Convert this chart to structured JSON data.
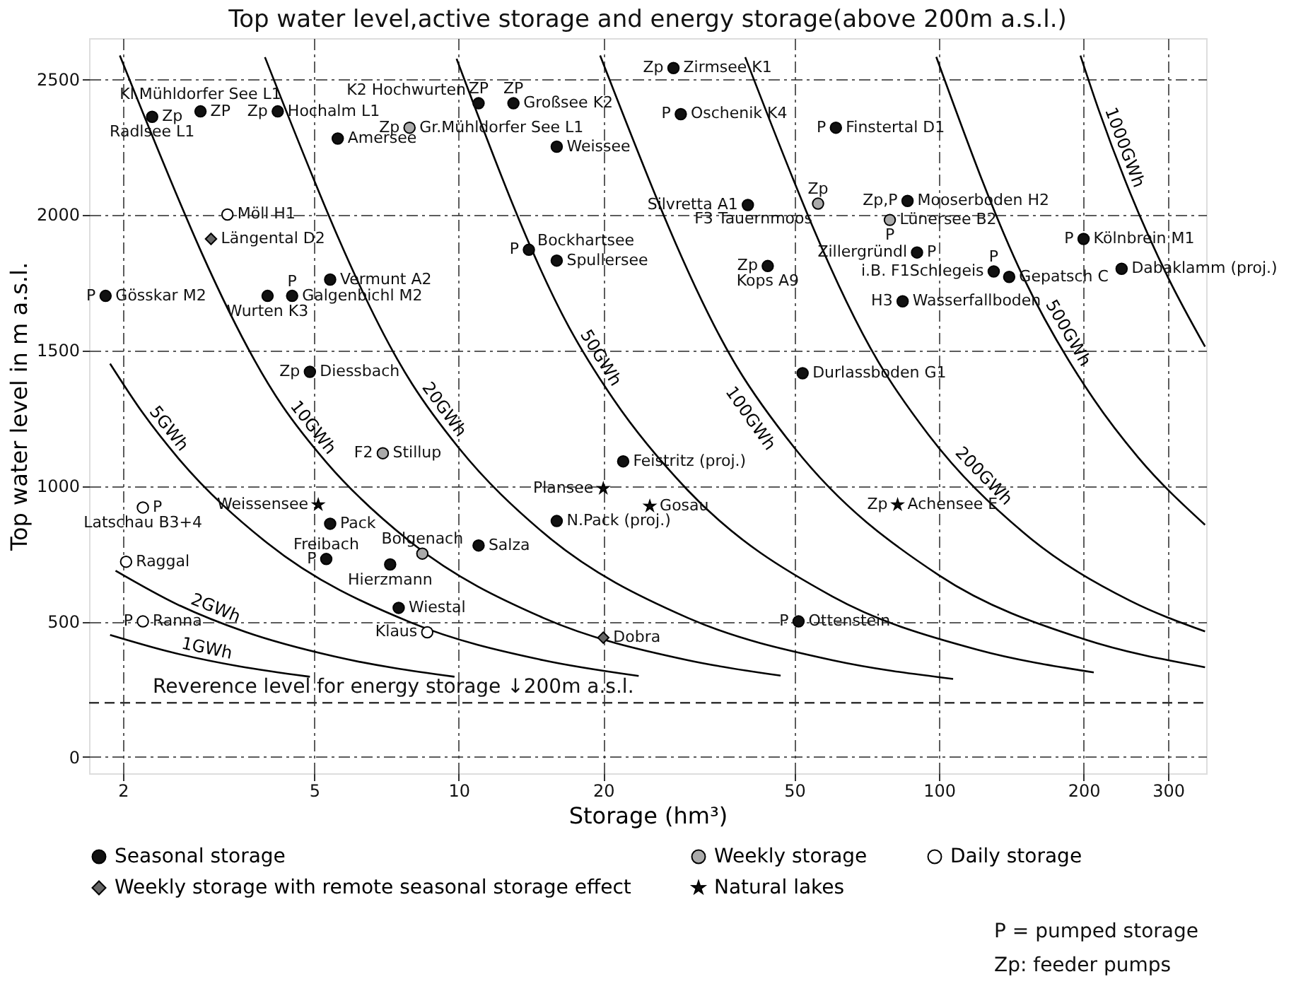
{
  "chart_data": {
    "type": "scatter",
    "title": "Top water level,active storage and energy storage(above 200m a.s.l.)",
    "xlabel": "Storage (hm³)",
    "ylabel": "Top water level in m a.s.l.",
    "log": "x",
    "xlim": [
      1.7,
      360
    ],
    "xticks": [
      2,
      5,
      10,
      20,
      50,
      100,
      200,
      300
    ],
    "ylim": [
      -60,
      2650
    ],
    "yticks": [
      0,
      500,
      1000,
      1500,
      2000,
      2500
    ],
    "grid": true,
    "legend": "bottom",
    "series": [
      {
        "name": "Seasonal storage",
        "marker": "circle",
        "color": "#111111",
        "x": [
          2.3,
          2.9,
          4.2,
          5.6,
          11,
          13,
          16,
          1.84,
          4.0,
          4.5,
          5.4,
          4.9,
          14,
          16,
          28,
          29,
          61,
          40,
          86,
          90,
          44,
          130,
          140,
          84,
          200,
          240,
          52,
          5.4,
          5.3,
          7.2,
          11,
          7.5,
          16,
          22,
          51
        ],
        "values": [
          2360,
          2380,
          2380,
          2280,
          2410,
          2410,
          2250,
          1700,
          1700,
          1700,
          1760,
          1420,
          1870,
          1830,
          2540,
          2370,
          2320,
          2035,
          2050,
          1860,
          1810,
          1790,
          1770,
          1680,
          1910,
          1800,
          1415,
          860,
          730,
          710,
          780,
          550,
          870,
          1090,
          500
        ],
        "value_labels": [
          "Radlsee L1",
          "Kl.Mühldorfer See L1",
          "Hochalm L1",
          "Amersee",
          "K2 Hochwurten",
          "Großsee K2",
          "Weissee",
          "Gösskar M2",
          "Wurten K3",
          "Galgenbichl M2",
          "Vermunt A2",
          "Diessbach",
          "Bockhartsee",
          "Spullersee",
          "Zirmsee K1",
          "Oschenik K4",
          "Finstertal D1",
          "Silvretta A1",
          "Mooserboden H2",
          "Zillergründl",
          "Kops A9",
          "i.B. F1Schlegeis",
          "Gepatsch C",
          "Wasserfallboden",
          "Kölnbrein M1",
          "Dabaklamm (proj.)",
          "Durlassboden G1",
          "Pack",
          "Freibach",
          "Hierzmann",
          "Salza",
          "Wiestal",
          "N.Pack (proj.)",
          "Feistritz (proj.)",
          "Ottenstein"
        ]
      },
      {
        "name": "Weekly storage",
        "marker": "circle",
        "color": "#aaaaaa",
        "x": [
          7.9,
          56,
          79,
          8.4,
          6.95
        ],
        "values": [
          2320,
          2040,
          1980,
          750,
          1120
        ],
        "value_labels": [
          "Gr.Mühldorfer See L1",
          "F3 Tauernmoos",
          "Lünersee B2",
          "Bolgenach",
          "Stillup"
        ]
      },
      {
        "name": "Daily storage",
        "marker": "circle",
        "color": "#ffffff",
        "x": [
          3.3,
          2.2,
          2.03,
          8.6,
          2.2
        ],
        "values": [
          2000,
          920,
          720,
          460,
          500
        ],
        "value_labels": [
          "Möll H1",
          "Latschau B3+4",
          "Raggal",
          "Klaus",
          "Ranna"
        ]
      },
      {
        "name": "Weekly storage with remote seasonal storage effect",
        "marker": "diamond",
        "color": "#666666",
        "x": [
          3.05,
          20
        ],
        "values": [
          1910,
          440
        ],
        "value_labels": [
          "Längental D2",
          "Dobra"
        ]
      },
      {
        "name": "Natural lakes",
        "marker": "star",
        "color": "#111111",
        "x": [
          5.1,
          20,
          25,
          82
        ],
        "values": [
          930,
          990,
          925,
          930
        ],
        "value_labels": [
          "Weissensee",
          "Plansee",
          "Gosau",
          "Achensee E"
        ]
      },
      {
        "name": "1GWh",
        "type": "line",
        "color": "#000000",
        "marker": "none",
        "line_style": "solid",
        "x": [
          1.88,
          2.5,
          3.5,
          4.9
        ],
        "values": [
          450,
          388,
          334,
          296
        ]
      },
      {
        "name": "2GWh",
        "type": "line",
        "color": "#000000",
        "marker": "none",
        "line_style": "solid",
        "x": [
          1.93,
          2.6,
          3.6,
          5.5,
          9.8
        ],
        "values": [
          687,
          562,
          461,
          371,
          296
        ]
      },
      {
        "name": "5GWh",
        "type": "line",
        "color": "#000000",
        "marker": "none",
        "line_style": "solid",
        "x": [
          1.88,
          2.2,
          2.6,
          4,
          8,
          15,
          23.7
        ],
        "values": [
          1450,
          1268,
          1104,
          788,
          494,
          357,
          299
        ]
      },
      {
        "name": "10GWh",
        "type": "line",
        "color": "#000000",
        "marker": "none",
        "line_style": "solid",
        "x": [
          1.97,
          4.3,
          5.3,
          8,
          15,
          30,
          46.8
        ],
        "values": [
          2586,
          1293,
          1087,
          788,
          513,
          357,
          300
        ]
      },
      {
        "name": "20GWh",
        "type": "line",
        "color": "#000000",
        "marker": "none",
        "line_style": "solid",
        "x": [
          3.95,
          8,
          10,
          15,
          30,
          60,
          107
        ],
        "values": [
          2580,
          1375,
          1140,
          827,
          513,
          357,
          288
        ]
      },
      {
        "name": "50GWh",
        "type": "line",
        "color": "#000000",
        "marker": "none",
        "line_style": "solid",
        "x": [
          9.9,
          17,
          21,
          30,
          60,
          120,
          210
        ],
        "values": [
          2574,
          1582,
          1319,
          983,
          592,
          396,
          312
        ]
      },
      {
        "name": "100GWh",
        "type": "line",
        "color": "#000000",
        "marker": "none",
        "line_style": "solid",
        "x": [
          19.7,
          38,
          50,
          100,
          200,
          358
        ],
        "values": [
          2586,
          1437,
          1140,
          670,
          435,
          331
        ]
      },
      {
        "name": "200GWh",
        "type": "line",
        "color": "#000000",
        "marker": "none",
        "line_style": "solid",
        "x": [
          39.5,
          75,
          95,
          150,
          250,
          358
        ],
        "values": [
          2580,
          1453,
          1189,
          827,
          576,
          463
        ]
      },
      {
        "name": "500GWh",
        "type": "line",
        "color": "#000000",
        "marker": "none",
        "line_style": "solid",
        "x": [
          98.7,
          150,
          210,
          260,
          358
        ],
        "values": [
          2581,
          1767,
          1319,
          1104,
          856
        ]
      },
      {
        "name": "1000GWh",
        "type": "line",
        "color": "#000000",
        "marker": "none",
        "line_style": "solid",
        "x": [
          197,
          215,
          250,
          300,
          358
        ],
        "values": [
          2586,
          2386,
          2080,
          1767,
          1513
        ]
      }
    ],
    "ref_lines": [
      {
        "axis": "y",
        "value": 200,
        "label": "Reverence level for energy storage ↓200m a.s.l.",
        "line_style": "dashed"
      }
    ],
    "annotations": [
      {
        "text": "Zp",
        "x": 2.3,
        "y": 2360
      },
      {
        "text": "ZP",
        "x": 2.9,
        "y": 2380
      },
      {
        "text": "Zp",
        "x": 4.2,
        "y": 2380
      },
      {
        "text": "ZP",
        "x": 11,
        "y": 2410
      },
      {
        "text": "ZP",
        "x": 13,
        "y": 2410
      },
      {
        "text": "P",
        "x": 1.84,
        "y": 1700
      },
      {
        "text": "P",
        "x": 4.5,
        "y": 1700
      },
      {
        "text": "Zp",
        "x": 4.9,
        "y": 1420
      },
      {
        "text": "P",
        "x": 14,
        "y": 1870
      },
      {
        "text": "Zp",
        "x": 28,
        "y": 2540
      },
      {
        "text": "P",
        "x": 29,
        "y": 2370
      },
      {
        "text": "P",
        "x": 61,
        "y": 2320
      },
      {
        "text": "Zp,P",
        "x": 86,
        "y": 2050
      },
      {
        "text": "P",
        "x": 90,
        "y": 1860
      },
      {
        "text": "Zp",
        "x": 44,
        "y": 1810
      },
      {
        "text": "P",
        "x": 130,
        "y": 1790
      },
      {
        "text": "H3",
        "x": 84,
        "y": 1680
      },
      {
        "text": "P",
        "x": 200,
        "y": 1910
      },
      {
        "text": "P",
        "x": 5.3,
        "y": 730
      },
      {
        "text": "P",
        "x": 51,
        "y": 500
      },
      {
        "text": "Zp",
        "x": 7.9,
        "y": 2320
      },
      {
        "text": "Zp",
        "x": 56,
        "y": 2040
      },
      {
        "text": "P",
        "x": 79,
        "y": 1980
      },
      {
        "text": "F2",
        "x": 6.95,
        "y": 1120
      },
      {
        "text": "P",
        "x": 2.2,
        "y": 920
      },
      {
        "text": "P",
        "x": 2.2,
        "y": 500
      },
      {
        "text": "Zp",
        "x": 82,
        "y": 930
      },
      "P = pumped storage",
      "Zp: feeder pumps"
    ]
  }
}
